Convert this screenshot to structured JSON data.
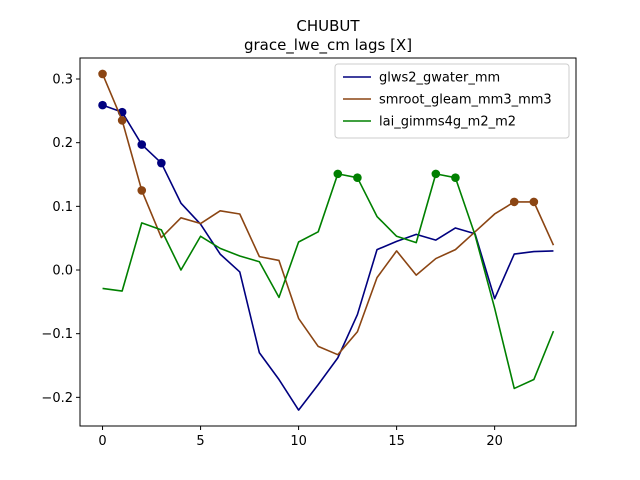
{
  "chart_data": {
    "type": "line",
    "title": "CHUBUT",
    "subtitle": "grace_lwe_cm lags [X]",
    "xlim": [
      -1.15,
      24.15
    ],
    "ylim": [
      -0.245,
      0.333
    ],
    "xticks": [
      0,
      5,
      10,
      15,
      20
    ],
    "yticks": [
      -0.2,
      -0.1,
      0.0,
      0.1,
      0.2,
      0.3
    ],
    "ytick_labels": [
      "−0.2",
      "−0.1",
      "0.0",
      "0.1",
      "0.2",
      "0.3"
    ],
    "grid": false,
    "legend_position": "top-right",
    "series": [
      {
        "name": "glws2_gwater_mm",
        "color": "#00007f",
        "x": [
          0,
          1,
          2,
          3,
          4,
          5,
          6,
          7,
          8,
          9,
          10,
          11,
          12,
          13,
          14,
          15,
          16,
          17,
          18,
          19,
          20,
          21,
          22,
          23
        ],
        "values": [
          0.259,
          0.248,
          0.197,
          0.168,
          0.105,
          0.072,
          0.025,
          -0.003,
          -0.13,
          -0.172,
          -0.22,
          -0.18,
          -0.138,
          -0.07,
          0.032,
          0.045,
          0.056,
          0.047,
          0.066,
          0.057,
          -0.045,
          0.025,
          0.029,
          0.03
        ],
        "markers": [
          0,
          1,
          2,
          3
        ]
      },
      {
        "name": "smroot_gleam_mm3_mm3",
        "color": "#8b4513",
        "x": [
          0,
          1,
          2,
          3,
          4,
          5,
          6,
          7,
          8,
          9,
          10,
          11,
          12,
          13,
          14,
          15,
          16,
          17,
          18,
          19,
          20,
          21,
          22,
          23
        ],
        "values": [
          0.308,
          0.235,
          0.125,
          0.051,
          0.082,
          0.073,
          0.093,
          0.088,
          0.021,
          0.015,
          -0.076,
          -0.12,
          -0.133,
          -0.097,
          -0.012,
          0.03,
          -0.008,
          0.018,
          0.032,
          0.06,
          0.088,
          0.107,
          0.107,
          0.039
        ],
        "markers": [
          0,
          1,
          2,
          21,
          22
        ]
      },
      {
        "name": "lai_gimms4g_m2_m2",
        "color": "#008000",
        "x": [
          0,
          1,
          2,
          3,
          4,
          5,
          6,
          7,
          8,
          9,
          10,
          11,
          12,
          13,
          14,
          15,
          16,
          17,
          18,
          19,
          20,
          21,
          22,
          23
        ],
        "values": [
          -0.029,
          -0.033,
          0.074,
          0.063,
          0.0,
          0.053,
          0.034,
          0.022,
          0.013,
          -0.043,
          0.044,
          0.06,
          0.151,
          0.145,
          0.084,
          0.053,
          0.043,
          0.151,
          0.145,
          0.055,
          -0.06,
          -0.186,
          -0.172,
          -0.096
        ],
        "markers": [
          12,
          13,
          17,
          18
        ]
      }
    ]
  }
}
